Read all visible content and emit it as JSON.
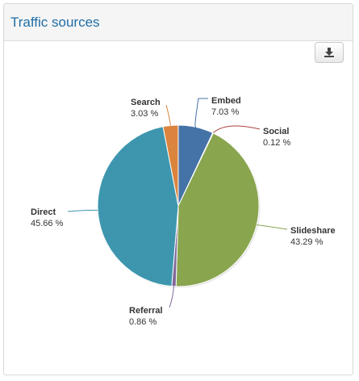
{
  "panel": {
    "title": "Traffic sources",
    "download_icon": "download-icon"
  },
  "chart_data": {
    "type": "pie",
    "title": "",
    "slices": [
      {
        "name": "Embed",
        "value": 7.03,
        "label": "7.03 %",
        "color": "#4572a7"
      },
      {
        "name": "Social",
        "value": 0.12,
        "label": "0.12 %",
        "color": "#aa4643"
      },
      {
        "name": "Slideshare",
        "value": 43.29,
        "label": "43.29 %",
        "color": "#89a54e"
      },
      {
        "name": "Referral",
        "value": 0.86,
        "label": "0.86 %",
        "color": "#80699b"
      },
      {
        "name": "Direct",
        "value": 45.66,
        "label": "45.66 %",
        "color": "#3d96ae"
      },
      {
        "name": "Search",
        "value": 3.03,
        "label": "3.03 %",
        "color": "#db843d"
      }
    ],
    "legend": "none",
    "data_labels": "outside"
  }
}
